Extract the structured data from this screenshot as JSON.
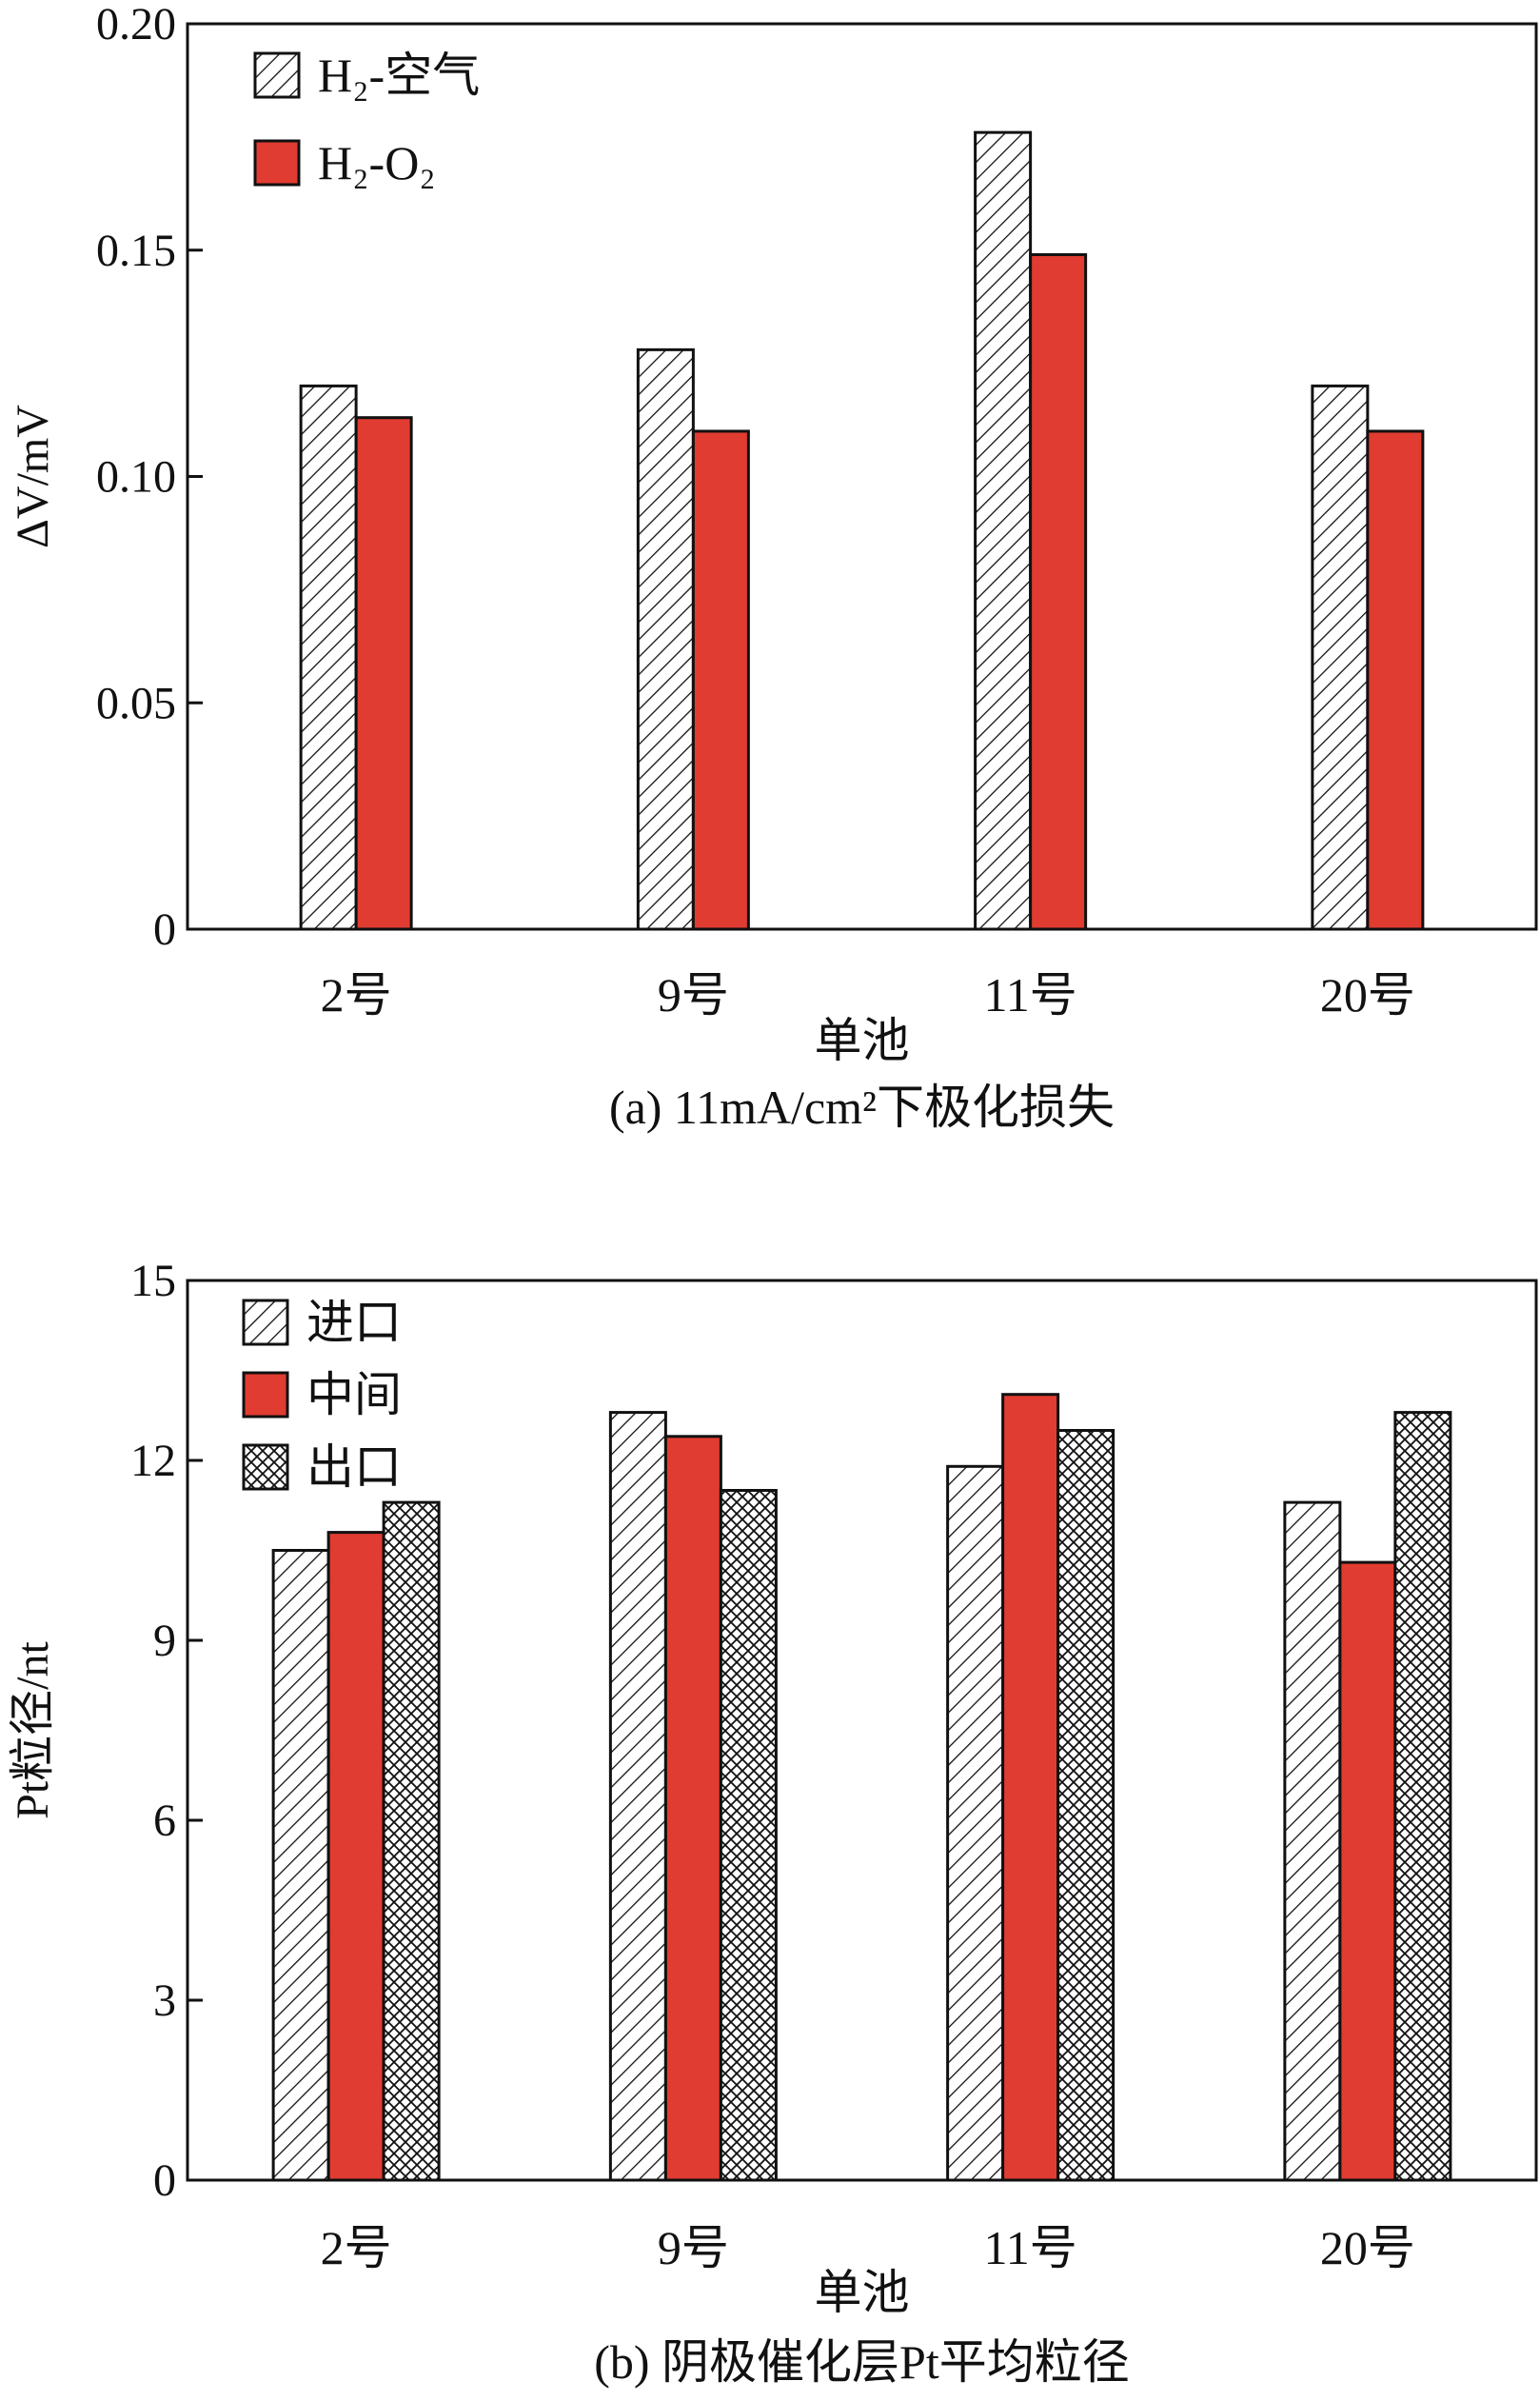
{
  "chart_data": [
    {
      "type": "bar",
      "caption": "(a) 11mA/cm²下极化损失",
      "ylabel": "ΔV/mV",
      "xlabel": "单池",
      "categories": [
        "2号",
        "9号",
        "11号",
        "20号"
      ],
      "ylim": [
        0,
        0.2
      ],
      "yticks": [
        "0",
        "0.05",
        "0.10",
        "0.15",
        "0.20"
      ],
      "legend_position": "top-left",
      "grid": false,
      "series": [
        {
          "name": "H₂-空气",
          "pattern": "diagonal",
          "color": "#ffffff",
          "values": [
            0.12,
            0.128,
            0.176,
            0.12
          ]
        },
        {
          "name": "H₂-O₂",
          "pattern": "solid",
          "color": "#e03c31",
          "values": [
            0.113,
            0.11,
            0.149,
            0.11
          ]
        }
      ]
    },
    {
      "type": "bar",
      "caption": "(b) 阴极催化层Pt平均粒径",
      "ylabel": "Pt粒径/nt",
      "xlabel": "单池",
      "categories": [
        "2号",
        "9号",
        "11号",
        "20号"
      ],
      "ylim": [
        0,
        15
      ],
      "yticks": [
        "0",
        "3",
        "6",
        "9",
        "12",
        "15"
      ],
      "legend_position": "top-left",
      "grid": false,
      "series": [
        {
          "name": "进口",
          "pattern": "diagonal",
          "color": "#ffffff",
          "values": [
            10.5,
            12.8,
            11.9,
            11.3
          ]
        },
        {
          "name": "中间",
          "pattern": "solid",
          "color": "#e03c31",
          "values": [
            10.8,
            12.4,
            13.1,
            10.3
          ]
        },
        {
          "name": "出口",
          "pattern": "crosshatch",
          "color": "#ffffff",
          "values": [
            11.3,
            11.5,
            12.5,
            12.8
          ]
        }
      ]
    }
  ]
}
